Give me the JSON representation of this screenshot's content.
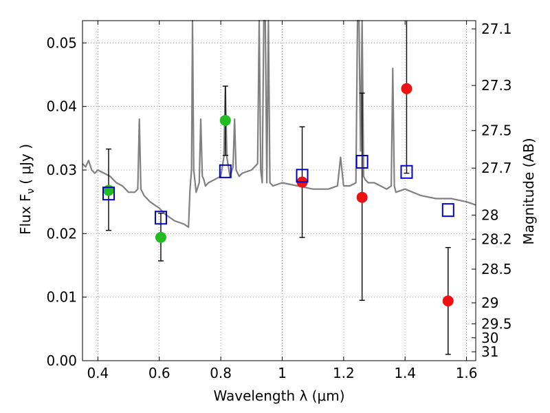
{
  "chart_data": {
    "type": "scatter",
    "xlabel": "Wavelength  λ (μm)",
    "ylabel": "Flux  F",
    "ylabel_sub": "ν",
    "ylabel_unit": "( μJy )",
    "y2label": "Magnitude (AB)",
    "xlim": [
      0.35,
      1.63
    ],
    "ylim": [
      0.0,
      0.0535
    ],
    "grid": true,
    "x_ticks": [
      0.4,
      0.6,
      0.8,
      1.0,
      1.2,
      1.4,
      1.6
    ],
    "x_tick_labels": [
      "0.4",
      "0.6",
      "0.8",
      "1",
      "1.2",
      "1.4",
      "1.6"
    ],
    "y_ticks": [
      0.0,
      0.01,
      0.02,
      0.03,
      0.04,
      0.05
    ],
    "y_tick_labels": [
      "0.00",
      "0.01",
      "0.02",
      "0.03",
      "0.04",
      "0.05"
    ],
    "y2_ticks": [
      {
        "flux": 0.0522,
        "label": "27.1"
      },
      {
        "flux": 0.0433,
        "label": "27.3"
      },
      {
        "flux": 0.0362,
        "label": "27.5"
      },
      {
        "flux": 0.0303,
        "label": "27.7"
      },
      {
        "flux": 0.0229,
        "label": "28"
      },
      {
        "flux": 0.0191,
        "label": "28.2"
      },
      {
        "flux": 0.0144,
        "label": "28.5"
      },
      {
        "flux": 0.0091,
        "label": "29"
      },
      {
        "flux": 0.0058,
        "label": "29.5"
      },
      {
        "flux": 0.0036,
        "label": "30"
      },
      {
        "flux": 0.0014,
        "label": "31"
      }
    ],
    "colors": {
      "spectrum": "#808080",
      "green_points": "#22bb22",
      "red_points": "#ee1111",
      "model_squares": "#0000cc",
      "errorbars": "#000000",
      "grid": "#888888"
    },
    "series": [
      {
        "kind": "spectrum",
        "x": [
          0.35,
          0.36,
          0.37,
          0.38,
          0.39,
          0.4,
          0.42,
          0.44,
          0.46,
          0.48,
          0.5,
          0.52,
          0.53,
          0.535,
          0.54,
          0.55,
          0.57,
          0.6,
          0.62,
          0.65,
          0.68,
          0.695,
          0.7,
          0.705,
          0.708,
          0.712,
          0.72,
          0.73,
          0.735,
          0.74,
          0.745,
          0.75,
          0.76,
          0.78,
          0.8,
          0.81,
          0.815,
          0.82,
          0.83,
          0.84,
          0.845,
          0.85,
          0.86,
          0.87,
          0.9,
          0.92,
          0.925,
          0.93,
          0.935,
          0.94,
          0.945,
          0.95,
          0.955,
          0.96,
          0.97,
          1.0,
          1.05,
          1.1,
          1.15,
          1.18,
          1.19,
          1.2,
          1.22,
          1.24,
          1.245,
          1.25,
          1.255,
          1.26,
          1.265,
          1.27,
          1.28,
          1.3,
          1.34,
          1.355,
          1.36,
          1.365,
          1.37,
          1.4,
          1.45,
          1.5,
          1.55,
          1.6,
          1.63
        ],
        "y": [
          0.031,
          0.0305,
          0.0315,
          0.03,
          0.0295,
          0.03,
          0.0295,
          0.029,
          0.028,
          0.0275,
          0.0265,
          0.0265,
          0.027,
          0.038,
          0.027,
          0.026,
          0.025,
          0.024,
          0.023,
          0.022,
          0.0215,
          0.021,
          0.027,
          0.03,
          0.0535,
          0.03,
          0.0265,
          0.028,
          0.038,
          0.029,
          0.0285,
          0.0275,
          0.028,
          0.0285,
          0.029,
          0.032,
          0.043,
          0.032,
          0.029,
          0.0305,
          0.038,
          0.03,
          0.029,
          0.0295,
          0.03,
          0.031,
          0.0535,
          0.03,
          0.028,
          0.0535,
          0.0535,
          0.028,
          0.0535,
          0.028,
          0.0275,
          0.028,
          0.0275,
          0.027,
          0.027,
          0.0275,
          0.032,
          0.0275,
          0.0275,
          0.028,
          0.0535,
          0.0535,
          0.033,
          0.0535,
          0.029,
          0.0285,
          0.028,
          0.028,
          0.027,
          0.0275,
          0.046,
          0.0275,
          0.0265,
          0.027,
          0.026,
          0.0255,
          0.0255,
          0.025,
          0.0245
        ]
      },
      {
        "kind": "green_points",
        "points": [
          {
            "x": 0.435,
            "y": 0.0268,
            "lo": 0.0205,
            "hi": 0.0333
          },
          {
            "x": 0.605,
            "y": 0.0194,
            "lo": 0.0157,
            "hi": 0.0232
          },
          {
            "x": 0.815,
            "y": 0.0378,
            "lo": 0.0323,
            "hi": 0.0432
          }
        ]
      },
      {
        "kind": "red_points",
        "points": [
          {
            "x": 1.065,
            "y": 0.0281,
            "lo": 0.0194,
            "hi": 0.0368
          },
          {
            "x": 1.26,
            "y": 0.0257,
            "lo": 0.0095,
            "hi": 0.0421
          },
          {
            "x": 1.405,
            "y": 0.0428,
            "lo": 0.0295,
            "hi": 0.0535
          },
          {
            "x": 1.54,
            "y": 0.0094,
            "lo": 0.001,
            "hi": 0.0178
          }
        ]
      },
      {
        "kind": "model_squares",
        "points": [
          {
            "x": 0.435,
            "y": 0.0263
          },
          {
            "x": 0.605,
            "y": 0.0225
          },
          {
            "x": 0.815,
            "y": 0.0298
          },
          {
            "x": 1.065,
            "y": 0.0291
          },
          {
            "x": 1.26,
            "y": 0.0313
          },
          {
            "x": 1.405,
            "y": 0.0297
          },
          {
            "x": 1.54,
            "y": 0.0237
          }
        ]
      }
    ]
  }
}
